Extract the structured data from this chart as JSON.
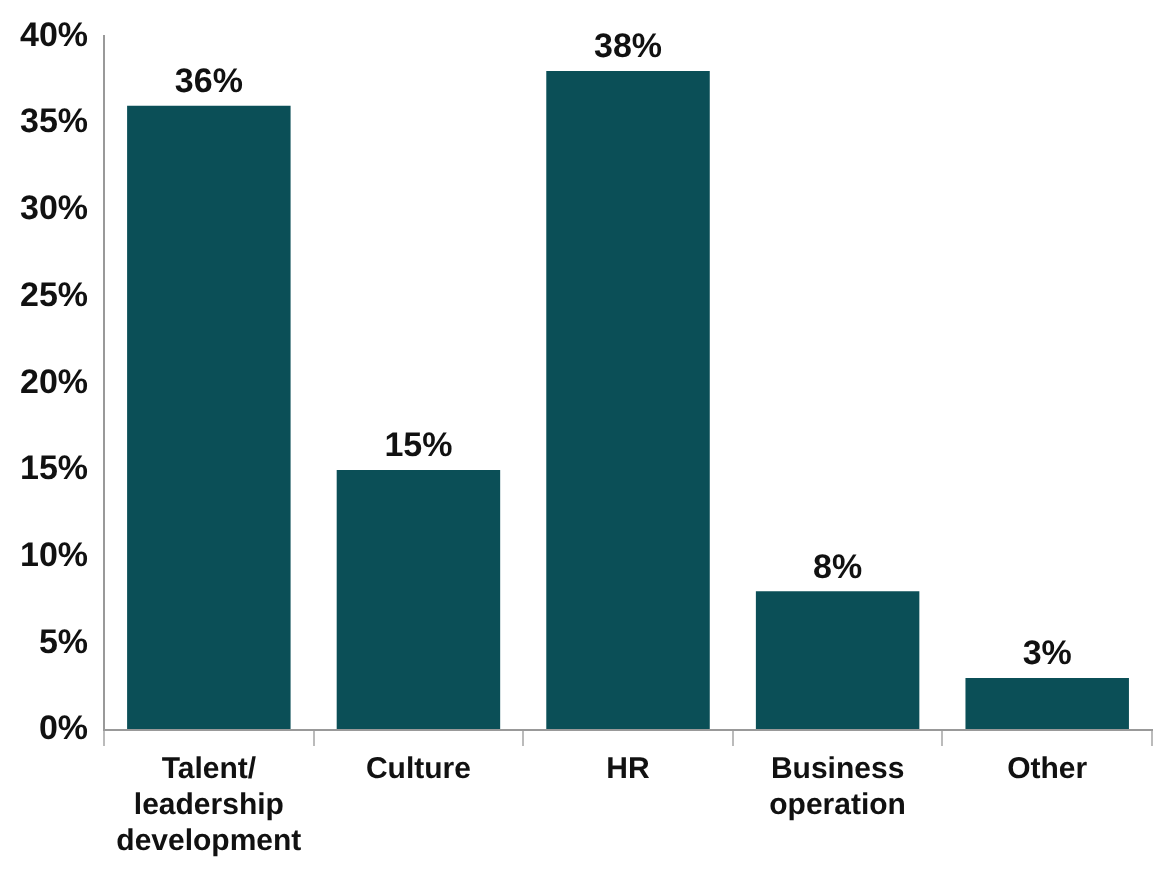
{
  "chart_data": {
    "type": "bar",
    "categories": [
      "Talent/ leadership development",
      "Culture",
      "HR",
      "Business operation",
      "Other"
    ],
    "values": [
      36,
      15,
      38,
      8,
      3
    ],
    "value_labels": [
      "36%",
      "15%",
      "38%",
      "8%",
      "3%"
    ],
    "color": "#0b4f57",
    "ylim": [
      0,
      40
    ],
    "yticks": [
      {
        "value": 0,
        "label": "0%"
      },
      {
        "value": 5,
        "label": "5%"
      },
      {
        "value": 10,
        "label": "10%"
      },
      {
        "value": 15,
        "label": "15%"
      },
      {
        "value": 20,
        "label": "20%"
      },
      {
        "value": 25,
        "label": "25%"
      },
      {
        "value": 30,
        "label": "30%"
      },
      {
        "value": 35,
        "label": "35%"
      },
      {
        "value": 40,
        "label": "40%"
      }
    ],
    "grid": false,
    "legend": false
  }
}
